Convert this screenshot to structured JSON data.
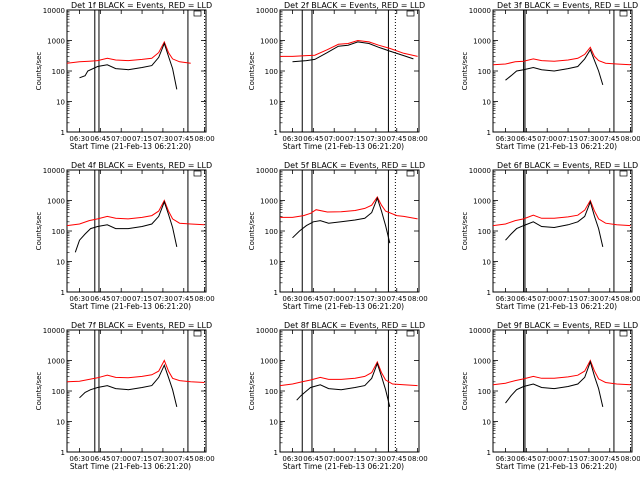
{
  "figure": {
    "background": "#ffffff",
    "event_color": "#000000",
    "lld_color": "#ff0000"
  },
  "chart_data": [
    {
      "type": "line",
      "title": "Det 1f BLACK = Events, RED = LLD",
      "xlabel": "Start Time (21-Feb-13 06:21:20)",
      "ylabel": "Counts/sec",
      "y_scale": "log",
      "ylim": [
        1,
        10000
      ],
      "x_ticks": [
        "06:30",
        "06:45",
        "07:00",
        "07:15",
        "07:30",
        "07:45",
        "08:00"
      ],
      "y_ticks": [
        "1",
        "10",
        "100",
        "1000",
        "10000"
      ],
      "series": [
        {
          "color": "#ff0000",
          "x": [
            "06:21",
            "06:30",
            "06:37",
            "06:43",
            "06:50",
            "06:56",
            "07:05",
            "07:15",
            "07:22",
            "07:27",
            "07:31",
            "07:34",
            "07:37",
            "07:42",
            "07:50"
          ],
          "y": [
            180,
            200,
            210,
            220,
            260,
            230,
            220,
            240,
            260,
            400,
            900,
            400,
            250,
            200,
            180
          ]
        },
        {
          "color": "#000000",
          "x": [
            "06:30",
            "06:34",
            "06:36",
            "06:43",
            "06:50",
            "06:56",
            "07:05",
            "07:15",
            "07:22",
            "07:27",
            "07:31",
            "07:34",
            "07:37",
            "07:40"
          ],
          "y": [
            60,
            70,
            100,
            140,
            160,
            120,
            110,
            130,
            150,
            280,
            800,
            300,
            120,
            25
          ]
        }
      ]
    },
    {
      "type": "line",
      "title": "Det 2f BLACK = Events, RED = LLD",
      "xlabel": "Start Time (21-Feb-13 06:21:20)",
      "ylabel": "Counts/sec",
      "y_scale": "log",
      "ylim": [
        1,
        10000
      ],
      "x_ticks": [
        "06:30",
        "06:45",
        "07:00",
        "07:15",
        "07:30",
        "07:45",
        "08:00"
      ],
      "y_ticks": [
        "1",
        "10",
        "100",
        "1000",
        "10000"
      ],
      "series": [
        {
          "color": "#ff0000",
          "x": [
            "06:21",
            "06:30",
            "06:40",
            "06:46",
            "06:55",
            "07:03",
            "07:10",
            "07:17",
            "07:25",
            "07:32",
            "07:40",
            "07:50",
            "08:00"
          ],
          "y": [
            300,
            300,
            320,
            330,
            500,
            750,
            800,
            1000,
            900,
            700,
            550,
            380,
            300
          ]
        },
        {
          "color": "#000000",
          "x": [
            "06:30",
            "06:40",
            "06:46",
            "06:55",
            "07:03",
            "07:10",
            "07:17",
            "07:25",
            "07:32",
            "07:40",
            "07:50",
            "07:57"
          ],
          "y": [
            200,
            220,
            240,
            400,
            650,
            700,
            900,
            800,
            600,
            450,
            320,
            250
          ]
        }
      ]
    },
    {
      "type": "line",
      "title": "Det 3f BLACK = Events, RED = LLD",
      "xlabel": "Start Time (21-Feb-13 06:21:20)",
      "ylabel": "Counts/sec",
      "y_scale": "log",
      "ylim": [
        1,
        10000
      ],
      "x_ticks": [
        "06:30",
        "06:45",
        "07:00",
        "07:15",
        "07:30",
        "07:45",
        "08:00"
      ],
      "y_ticks": [
        "1",
        "10",
        "100",
        "1000",
        "10000"
      ],
      "series": [
        {
          "color": "#ff0000",
          "x": [
            "06:21",
            "06:30",
            "06:37",
            "06:43",
            "06:50",
            "06:56",
            "07:05",
            "07:15",
            "07:22",
            "07:27",
            "07:31",
            "07:34",
            "07:37",
            "07:42",
            "07:50",
            "08:00"
          ],
          "y": [
            160,
            170,
            200,
            210,
            250,
            220,
            210,
            230,
            260,
            350,
            600,
            300,
            220,
            180,
            170,
            160
          ]
        },
        {
          "color": "#000000",
          "x": [
            "06:30",
            "06:34",
            "06:38",
            "06:43",
            "06:50",
            "06:56",
            "07:05",
            "07:15",
            "07:22",
            "07:27",
            "07:31",
            "07:34",
            "07:37",
            "07:40"
          ],
          "y": [
            50,
            70,
            100,
            110,
            130,
            110,
            100,
            120,
            140,
            250,
            500,
            220,
            100,
            35
          ]
        }
      ]
    },
    {
      "type": "line",
      "title": "Det 4f BLACK = Events, RED = LLD",
      "xlabel": "Start Time (21-Feb-13 06:21:20)",
      "ylabel": "Counts/sec",
      "y_scale": "log",
      "ylim": [
        1,
        10000
      ],
      "x_ticks": [
        "06:30",
        "06:45",
        "07:00",
        "07:15",
        "07:30",
        "07:45",
        "08:00"
      ],
      "y_ticks": [
        "1",
        "10",
        "100",
        "1000",
        "10000"
      ],
      "series": [
        {
          "color": "#ff0000",
          "x": [
            "06:21",
            "06:30",
            "06:37",
            "06:43",
            "06:50",
            "06:56",
            "07:05",
            "07:15",
            "07:22",
            "07:27",
            "07:31",
            "07:34",
            "07:37",
            "07:42",
            "07:50",
            "08:00"
          ],
          "y": [
            150,
            170,
            220,
            250,
            300,
            260,
            250,
            280,
            320,
            450,
            1000,
            450,
            250,
            180,
            170,
            160
          ]
        },
        {
          "color": "#000000",
          "x": [
            "06:27",
            "06:30",
            "06:34",
            "06:38",
            "06:43",
            "06:50",
            "06:56",
            "07:05",
            "07:15",
            "07:22",
            "07:27",
            "07:31",
            "07:34",
            "07:37",
            "07:40"
          ],
          "y": [
            20,
            50,
            80,
            120,
            140,
            160,
            120,
            120,
            140,
            170,
            300,
            900,
            350,
            130,
            30
          ]
        }
      ]
    },
    {
      "type": "line",
      "title": "Det 5f BLACK = Events, RED = LLD",
      "xlabel": "Start Time (21-Feb-13 06:21:20)",
      "ylabel": "Counts/sec",
      "y_scale": "log",
      "ylim": [
        1,
        10000
      ],
      "x_ticks": [
        "06:30",
        "06:45",
        "07:00",
        "07:15",
        "07:30",
        "07:45",
        "08:00"
      ],
      "y_ticks": [
        "1",
        "10",
        "100",
        "1000",
        "10000"
      ],
      "series": [
        {
          "color": "#ff0000",
          "x": [
            "06:21",
            "06:30",
            "06:38",
            "06:43",
            "06:47",
            "06:55",
            "07:05",
            "07:15",
            "07:22",
            "07:27",
            "07:31",
            "07:34",
            "07:37",
            "07:45",
            "07:50",
            "08:00"
          ],
          "y": [
            280,
            280,
            320,
            380,
            500,
            420,
            430,
            470,
            550,
            700,
            1300,
            700,
            450,
            320,
            300,
            250
          ]
        },
        {
          "color": "#000000",
          "x": [
            "06:30",
            "06:35",
            "06:40",
            "06:45",
            "06:50",
            "06:56",
            "07:05",
            "07:15",
            "07:22",
            "07:27",
            "07:31",
            "07:34",
            "07:37",
            "07:40"
          ],
          "y": [
            60,
            100,
            150,
            200,
            220,
            180,
            200,
            230,
            260,
            400,
            1200,
            450,
            150,
            40
          ]
        }
      ]
    },
    {
      "type": "line",
      "title": "Det 6f BLACK = Events, RED = LLD",
      "xlabel": "Start Time (21-Feb-13 06:21:20)",
      "ylabel": "Counts/sec",
      "y_scale": "log",
      "ylim": [
        1,
        10000
      ],
      "x_ticks": [
        "06:30",
        "06:45",
        "07:00",
        "07:15",
        "07:30",
        "07:45",
        "08:00"
      ],
      "y_ticks": [
        "1",
        "10",
        "100",
        "1000",
        "10000"
      ],
      "series": [
        {
          "color": "#ff0000",
          "x": [
            "06:21",
            "06:30",
            "06:37",
            "06:43",
            "06:50",
            "06:56",
            "07:05",
            "07:15",
            "07:22",
            "07:27",
            "07:31",
            "07:34",
            "07:37",
            "07:42",
            "07:50",
            "08:00"
          ],
          "y": [
            150,
            170,
            220,
            250,
            330,
            260,
            260,
            290,
            330,
            480,
            1000,
            450,
            250,
            180,
            160,
            150
          ]
        },
        {
          "color": "#000000",
          "x": [
            "06:30",
            "06:34",
            "06:38",
            "06:43",
            "06:50",
            "06:56",
            "07:05",
            "07:15",
            "07:22",
            "07:27",
            "07:31",
            "07:34",
            "07:37",
            "07:40"
          ],
          "y": [
            50,
            80,
            120,
            150,
            200,
            140,
            130,
            160,
            200,
            300,
            900,
            300,
            120,
            30
          ]
        }
      ]
    },
    {
      "type": "line",
      "title": "Det 7f BLACK = Events, RED = LLD",
      "xlabel": "Start Time (21-Feb-13 06:21:20)",
      "ylabel": "Counts/sec",
      "y_scale": "log",
      "ylim": [
        1,
        10000
      ],
      "x_ticks": [
        "06:30",
        "06:45",
        "07:00",
        "07:15",
        "07:30",
        "07:45",
        "08:00"
      ],
      "y_ticks": [
        "1",
        "10",
        "100",
        "1000",
        "10000"
      ],
      "series": [
        {
          "color": "#ff0000",
          "x": [
            "06:21",
            "06:30",
            "06:37",
            "06:43",
            "06:50",
            "06:56",
            "07:05",
            "07:15",
            "07:22",
            "07:27",
            "07:31",
            "07:34",
            "07:37",
            "07:42",
            "07:50",
            "08:00"
          ],
          "y": [
            200,
            210,
            240,
            270,
            330,
            280,
            270,
            300,
            340,
            450,
            1000,
            450,
            260,
            220,
            200,
            190
          ]
        },
        {
          "color": "#000000",
          "x": [
            "06:30",
            "06:34",
            "06:38",
            "06:43",
            "06:50",
            "06:56",
            "07:05",
            "07:15",
            "07:22",
            "07:27",
            "07:31",
            "07:34",
            "07:37",
            "07:40"
          ],
          "y": [
            60,
            90,
            110,
            130,
            150,
            120,
            110,
            130,
            150,
            280,
            700,
            280,
            110,
            30
          ]
        }
      ]
    },
    {
      "type": "line",
      "title": "Det 8f BLACK = Events, RED = LLD",
      "xlabel": "Start Time (21-Feb-13 06:21:20)",
      "ylabel": "Counts/sec",
      "y_scale": "log",
      "ylim": [
        1,
        10000
      ],
      "x_ticks": [
        "06:30",
        "06:45",
        "07:00",
        "07:15",
        "07:30",
        "07:45",
        "08:00"
      ],
      "y_ticks": [
        "1",
        "10",
        "100",
        "1000",
        "10000"
      ],
      "series": [
        {
          "color": "#ff0000",
          "x": [
            "06:21",
            "06:30",
            "06:37",
            "06:43",
            "06:50",
            "06:56",
            "07:05",
            "07:15",
            "07:22",
            "07:27",
            "07:31",
            "07:34",
            "07:37",
            "07:42",
            "07:50",
            "08:00"
          ],
          "y": [
            150,
            170,
            200,
            230,
            280,
            240,
            240,
            260,
            300,
            400,
            900,
            400,
            230,
            170,
            160,
            150
          ]
        },
        {
          "color": "#000000",
          "x": [
            "06:33",
            "06:36",
            "06:40",
            "06:43",
            "06:50",
            "06:56",
            "07:05",
            "07:15",
            "07:22",
            "07:27",
            "07:31",
            "07:34",
            "07:37",
            "07:40"
          ],
          "y": [
            50,
            70,
            100,
            130,
            160,
            120,
            110,
            130,
            150,
            260,
            800,
            300,
            110,
            30
          ]
        }
      ]
    },
    {
      "type": "line",
      "title": "Det 9f BLACK = Events, RED = LLD",
      "xlabel": "Start Time (21-Feb-13 06:21:20)",
      "ylabel": "Counts/sec",
      "y_scale": "log",
      "ylim": [
        1,
        10000
      ],
      "x_ticks": [
        "06:30",
        "06:45",
        "07:00",
        "07:15",
        "07:30",
        "07:45",
        "08:00"
      ],
      "y_ticks": [
        "1",
        "10",
        "100",
        "1000",
        "10000"
      ],
      "series": [
        {
          "color": "#ff0000",
          "x": [
            "06:21",
            "06:30",
            "06:37",
            "06:43",
            "06:50",
            "06:56",
            "07:05",
            "07:15",
            "07:22",
            "07:27",
            "07:31",
            "07:34",
            "07:37",
            "07:42",
            "07:50",
            "08:00"
          ],
          "y": [
            160,
            180,
            220,
            250,
            300,
            260,
            260,
            290,
            330,
            450,
            1000,
            450,
            250,
            190,
            170,
            160
          ]
        },
        {
          "color": "#000000",
          "x": [
            "06:30",
            "06:34",
            "06:38",
            "06:43",
            "06:50",
            "06:56",
            "07:05",
            "07:15",
            "07:22",
            "07:27",
            "07:31",
            "07:34",
            "07:37",
            "07:40"
          ],
          "y": [
            40,
            70,
            110,
            140,
            170,
            130,
            120,
            140,
            170,
            280,
            900,
            300,
            120,
            30
          ]
        }
      ]
    }
  ]
}
